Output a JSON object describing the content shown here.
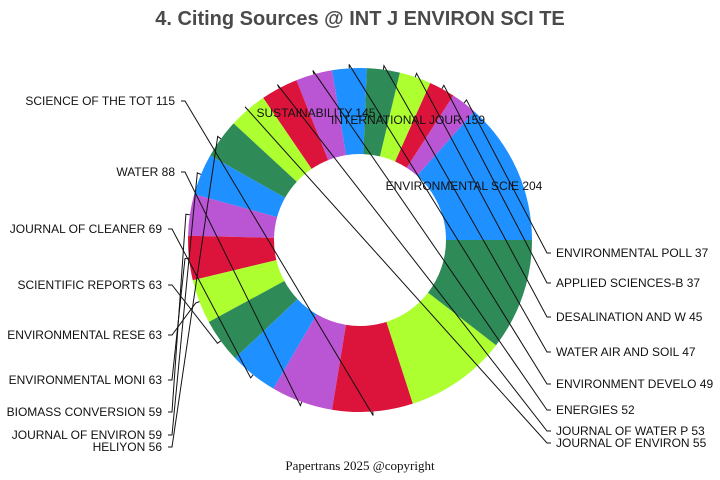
{
  "chart_data": {
    "type": "pie",
    "title": "4. Citing Sources @ INT J ENVIRON SCI TE",
    "footer": "Papertrans 2025 @copyright",
    "slices": [
      {
        "label": "ENVIRONMENTAL SCIE",
        "value": 204,
        "color": "#1e90ff"
      },
      {
        "label": "ENVIRONMENTAL POLL",
        "value": 37,
        "color": "#ba55d3"
      },
      {
        "label": "APPLIED SCIENCES-B",
        "value": 37,
        "color": "#dc143c"
      },
      {
        "label": "DESALINATION AND W",
        "value": 45,
        "color": "#adff2f"
      },
      {
        "label": "WATER AIR AND SOIL",
        "value": 47,
        "color": "#2e8b57"
      },
      {
        "label": "ENVIRONMENT DEVELO",
        "value": 49,
        "color": "#1e90ff"
      },
      {
        "label": "ENERGIES",
        "value": 52,
        "color": "#ba55d3"
      },
      {
        "label": "JOURNAL OF WATER P",
        "value": 53,
        "color": "#dc143c"
      },
      {
        "label": "JOURNAL OF ENVIRON",
        "value": 55,
        "color": "#adff2f"
      },
      {
        "label": "HELIYON",
        "value": 56,
        "color": "#2e8b57"
      },
      {
        "label": "JOURNAL OF ENVIRON",
        "value": 59,
        "color": "#1e90ff"
      },
      {
        "label": "BIOMASS CONVERSION",
        "value": 59,
        "color": "#ba55d3"
      },
      {
        "label": "ENVIRONMENTAL MONI",
        "value": 63,
        "color": "#dc143c"
      },
      {
        "label": "ENVIRONMENTAL RESE",
        "value": 63,
        "color": "#adff2f"
      },
      {
        "label": "SCIENTIFIC REPORTS",
        "value": 63,
        "color": "#2e8b57"
      },
      {
        "label": "JOURNAL OF CLEANER",
        "value": 69,
        "color": "#1e90ff"
      },
      {
        "label": "WATER",
        "value": 88,
        "color": "#ba55d3"
      },
      {
        "label": "SCIENCE OF THE TOT",
        "value": 115,
        "color": "#dc143c"
      },
      {
        "label": "SUSTAINABILITY",
        "value": 145,
        "color": "#adff2f"
      },
      {
        "label": "INTERNATIONAL JOUR",
        "value": 159,
        "color": "#2e8b57"
      }
    ]
  }
}
